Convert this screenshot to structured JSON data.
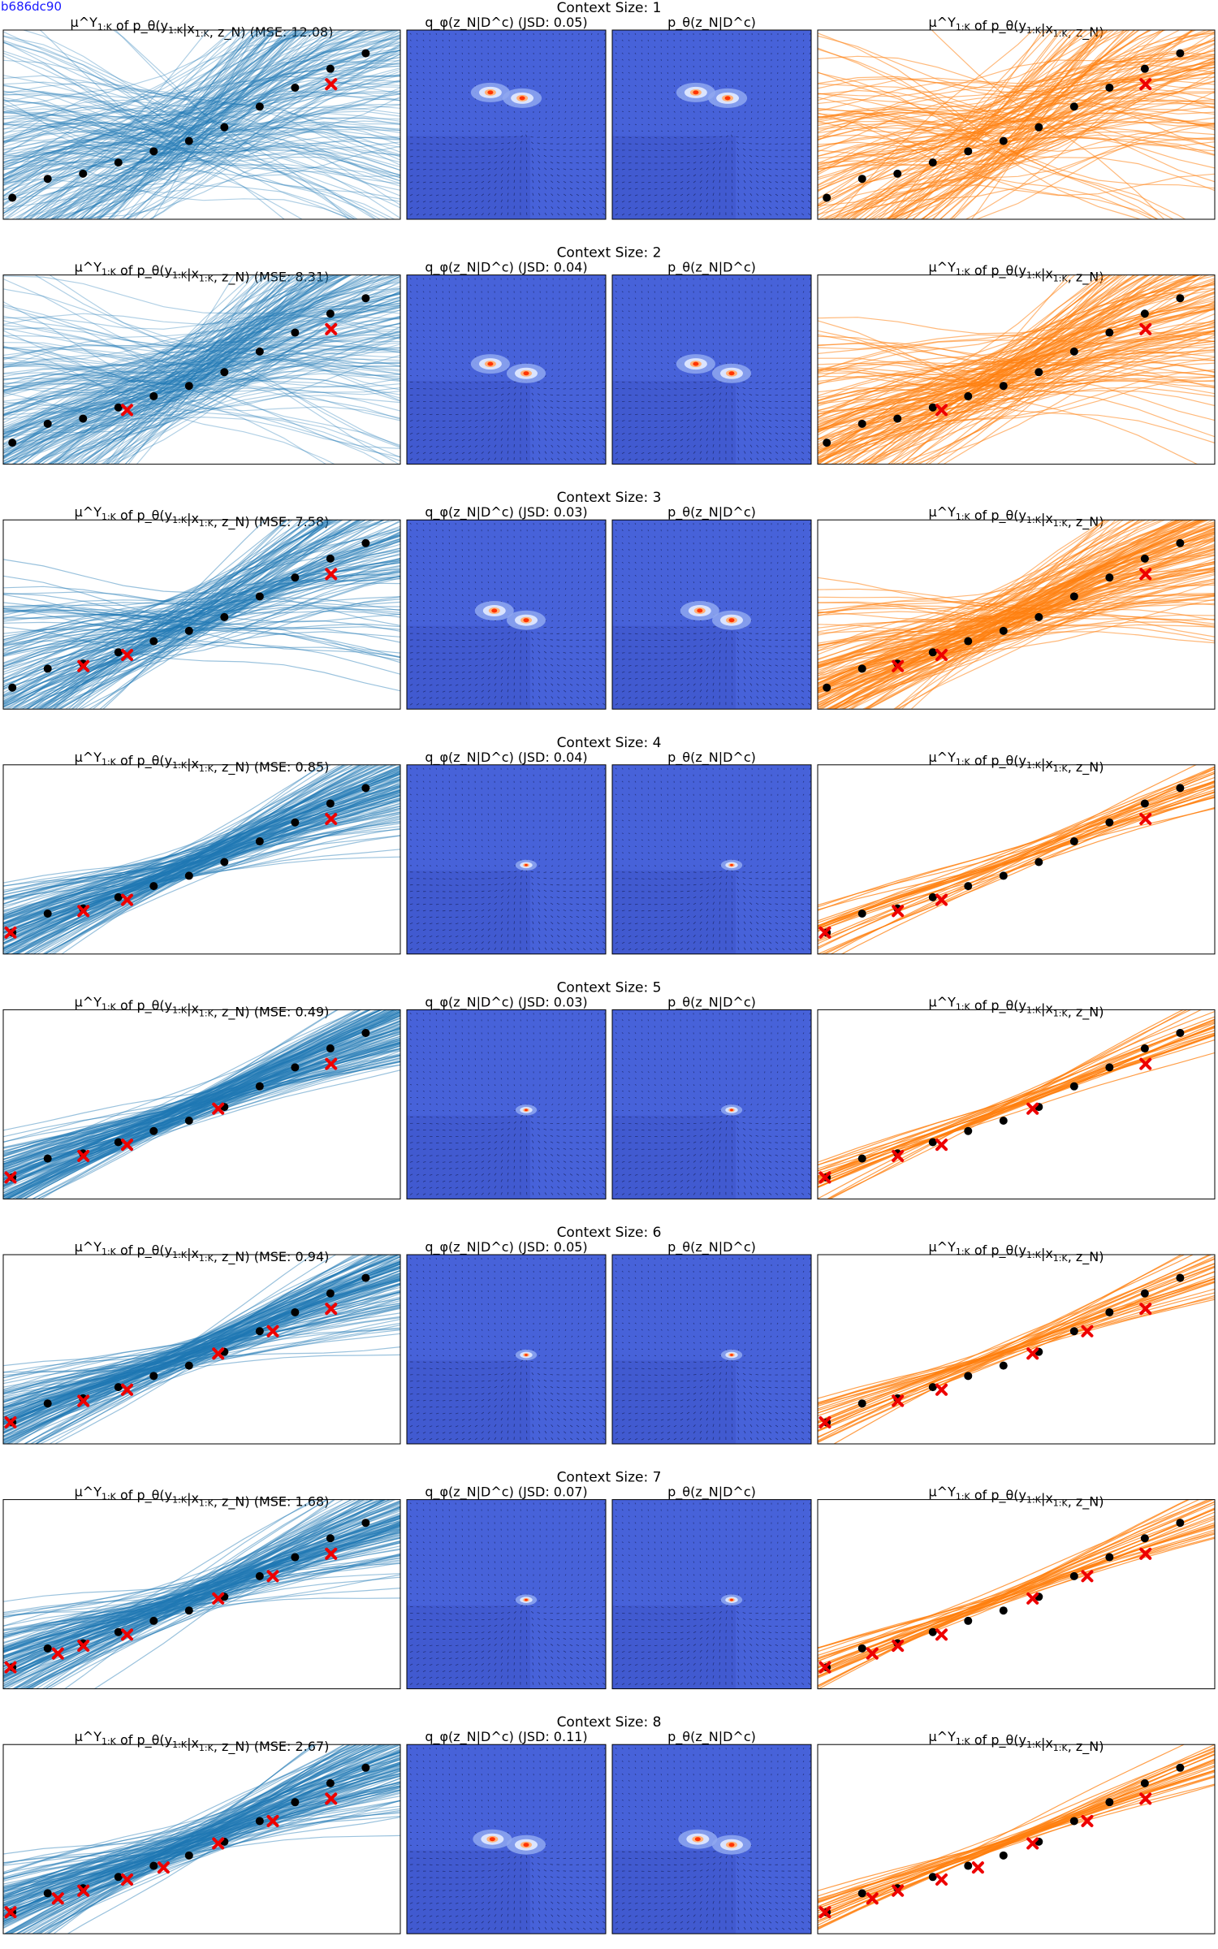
{
  "figure_id": "b686dc90",
  "colors": {
    "left_curves": "#1f77b4",
    "right_curves": "#ff7f0e",
    "target_points": "#000000",
    "context_points": "#ee0000",
    "density_background": "#4762d9",
    "density_peak": "#ff3300"
  },
  "chart_data": [
    {
      "type": "line",
      "title": "Context Size: 1",
      "context_size": 1,
      "panel_titles": {
        "left": "μ^Y_{1:K} of p_θ(y_{1:K}|x_{1:K}, z_N) (MSE: 12.08)",
        "mid_left": "q_φ(z_N|D^c) (JSD: 0.05)",
        "mid_right": "p_θ(z_N|D^c)",
        "right": "μ^Y_{1:K} of p_θ(y_{1:K}|x_{1:K}, z_N)"
      },
      "mse": 12.08,
      "jsd": 0.05,
      "x": [
        0,
        1,
        2,
        3,
        4,
        5,
        6,
        7,
        8,
        9,
        10
      ],
      "target_y": [
        3.0,
        5.2,
        5.8,
        7.1,
        8.4,
        9.6,
        11.2,
        13.6,
        15.8,
        18.0,
        19.8
      ],
      "context_points": [
        {
          "x": 8.4,
          "y": 16.2
        }
      ],
      "density_modes": [
        {
          "u": 0.42,
          "v": 0.33
        },
        {
          "u": 0.58,
          "v": 0.36
        }
      ],
      "left_spread": 10.0,
      "right_spread": 9.0
    },
    {
      "type": "line",
      "title": "Context Size: 2",
      "context_size": 2,
      "panel_titles": {
        "left": "μ^Y_{1:K} of p_θ(y_{1:K}|x_{1:K}, z_N) (MSE: 8.31)",
        "mid_left": "q_φ(z_N|D^c) (JSD: 0.04)",
        "mid_right": "p_θ(z_N|D^c)",
        "right": "μ^Y_{1:K} of p_θ(y_{1:K}|x_{1:K}, z_N)"
      },
      "mse": 8.31,
      "jsd": 0.04,
      "x": [
        0,
        1,
        2,
        3,
        4,
        5,
        6,
        7,
        8,
        9,
        10
      ],
      "target_y": [
        3.0,
        5.2,
        5.8,
        7.1,
        8.4,
        9.6,
        11.2,
        13.6,
        15.8,
        18.0,
        19.8
      ],
      "context_points": [
        {
          "x": 2.8,
          "y": 6.8
        },
        {
          "x": 8.4,
          "y": 16.2
        }
      ],
      "density_modes": [
        {
          "u": 0.42,
          "v": 0.47
        },
        {
          "u": 0.6,
          "v": 0.52
        }
      ],
      "left_spread": 7.5,
      "right_spread": 6.5
    },
    {
      "type": "line",
      "title": "Context Size: 3",
      "context_size": 3,
      "panel_titles": {
        "left": "μ^Y_{1:K} of p_θ(y_{1:K}|x_{1:K}, z_N) (MSE: 7.58)",
        "mid_left": "q_φ(z_N|D^c) (JSD: 0.03)",
        "mid_right": "p_θ(z_N|D^c)",
        "right": "μ^Y_{1:K} of p_θ(y_{1:K}|x_{1:K}, z_N)"
      },
      "mse": 7.58,
      "jsd": 0.03,
      "x": [
        0,
        1,
        2,
        3,
        4,
        5,
        6,
        7,
        8,
        9,
        10
      ],
      "target_y": [
        3.0,
        5.2,
        5.8,
        7.1,
        8.4,
        9.6,
        11.2,
        13.6,
        15.8,
        18.0,
        19.8
      ],
      "context_points": [
        {
          "x": 1.6,
          "y": 5.5
        },
        {
          "x": 2.8,
          "y": 6.8
        },
        {
          "x": 8.4,
          "y": 16.2
        }
      ],
      "density_modes": [
        {
          "u": 0.44,
          "v": 0.48
        },
        {
          "u": 0.6,
          "v": 0.53
        }
      ],
      "left_spread": 5.5,
      "right_spread": 4.5
    },
    {
      "type": "line",
      "title": "Context Size: 4",
      "context_size": 4,
      "panel_titles": {
        "left": "μ^Y_{1:K} of p_θ(y_{1:K}|x_{1:K}, z_N) (MSE: 0.85)",
        "mid_left": "q_φ(z_N|D^c) (JSD: 0.04)",
        "mid_right": "p_θ(z_N|D^c)",
        "right": "μ^Y_{1:K} of p_θ(y_{1:K}|x_{1:K}, z_N)"
      },
      "mse": 0.85,
      "jsd": 0.04,
      "x": [
        0,
        1,
        2,
        3,
        4,
        5,
        6,
        7,
        8,
        9,
        10
      ],
      "target_y": [
        3.0,
        5.2,
        5.8,
        7.1,
        8.4,
        9.6,
        11.2,
        13.6,
        15.8,
        18.0,
        19.8
      ],
      "context_points": [
        {
          "x": -0.4,
          "y": 3.0
        },
        {
          "x": 1.6,
          "y": 5.5
        },
        {
          "x": 2.8,
          "y": 6.8
        },
        {
          "x": 8.4,
          "y": 16.2
        }
      ],
      "density_modes": [
        {
          "u": 0.6,
          "v": 0.53
        }
      ],
      "left_spread": 2.5,
      "right_spread": 1.6
    },
    {
      "type": "line",
      "title": "Context Size: 5",
      "context_size": 5,
      "panel_titles": {
        "left": "μ^Y_{1:K} of p_θ(y_{1:K}|x_{1:K}, z_N) (MSE: 0.49)",
        "mid_left": "q_φ(z_N|D^c) (JSD: 0.03)",
        "mid_right": "p_θ(z_N|D^c)",
        "right": "μ^Y_{1:K} of p_θ(y_{1:K}|x_{1:K}, z_N)"
      },
      "mse": 0.49,
      "jsd": 0.03,
      "x": [
        0,
        1,
        2,
        3,
        4,
        5,
        6,
        7,
        8,
        9,
        10
      ],
      "target_y": [
        3.0,
        5.2,
        5.8,
        7.1,
        8.4,
        9.6,
        11.2,
        13.6,
        15.8,
        18.0,
        19.8
      ],
      "context_points": [
        {
          "x": -0.4,
          "y": 3.0
        },
        {
          "x": 1.6,
          "y": 5.5
        },
        {
          "x": 2.8,
          "y": 6.8
        },
        {
          "x": 5.3,
          "y": 11.0
        },
        {
          "x": 8.4,
          "y": 16.2
        }
      ],
      "density_modes": [
        {
          "u": 0.6,
          "v": 0.53
        }
      ],
      "left_spread": 2.2,
      "right_spread": 1.5
    },
    {
      "type": "line",
      "title": "Context Size: 6",
      "context_size": 6,
      "panel_titles": {
        "left": "μ^Y_{1:K} of p_θ(y_{1:K}|x_{1:K}, z_N) (MSE: 0.94)",
        "mid_left": "q_φ(z_N|D^c) (JSD: 0.05)",
        "mid_right": "p_θ(z_N|D^c)",
        "right": "μ^Y_{1:K} of p_θ(y_{1:K}|x_{1:K}, z_N)"
      },
      "mse": 0.94,
      "jsd": 0.05,
      "x": [
        0,
        1,
        2,
        3,
        4,
        5,
        6,
        7,
        8,
        9,
        10
      ],
      "target_y": [
        3.0,
        5.2,
        5.8,
        7.1,
        8.4,
        9.6,
        11.2,
        13.6,
        15.8,
        18.0,
        19.8
      ],
      "context_points": [
        {
          "x": -0.4,
          "y": 3.0
        },
        {
          "x": 1.6,
          "y": 5.5
        },
        {
          "x": 2.8,
          "y": 6.8
        },
        {
          "x": 5.3,
          "y": 11.0
        },
        {
          "x": 6.8,
          "y": 13.6
        },
        {
          "x": 8.4,
          "y": 16.2
        }
      ],
      "density_modes": [
        {
          "u": 0.6,
          "v": 0.53
        }
      ],
      "left_spread": 2.6,
      "right_spread": 1.5
    },
    {
      "type": "line",
      "title": "Context Size: 7",
      "context_size": 7,
      "panel_titles": {
        "left": "μ^Y_{1:K} of p_θ(y_{1:K}|x_{1:K}, z_N) (MSE: 1.68)",
        "mid_left": "q_φ(z_N|D^c) (JSD: 0.07)",
        "mid_right": "p_θ(z_N|D^c)",
        "right": "μ^Y_{1:K} of p_θ(y_{1:K}|x_{1:K}, z_N)"
      },
      "mse": 1.68,
      "jsd": 0.07,
      "x": [
        0,
        1,
        2,
        3,
        4,
        5,
        6,
        7,
        8,
        9,
        10
      ],
      "target_y": [
        3.0,
        5.2,
        5.8,
        7.1,
        8.4,
        9.6,
        11.2,
        13.6,
        15.8,
        18.0,
        19.8
      ],
      "context_points": [
        {
          "x": -0.4,
          "y": 3.0
        },
        {
          "x": 0.9,
          "y": 4.6
        },
        {
          "x": 1.6,
          "y": 5.5
        },
        {
          "x": 2.8,
          "y": 6.8
        },
        {
          "x": 5.3,
          "y": 11.0
        },
        {
          "x": 6.8,
          "y": 13.6
        },
        {
          "x": 8.4,
          "y": 16.2
        }
      ],
      "density_modes": [
        {
          "u": 0.6,
          "v": 0.53
        }
      ],
      "left_spread": 2.8,
      "right_spread": 1.3
    },
    {
      "type": "line",
      "title": "Context Size: 8",
      "context_size": 8,
      "panel_titles": {
        "left": "μ^Y_{1:K} of p_θ(y_{1:K}|x_{1:K}, z_N) (MSE: 2.67)",
        "mid_left": "q_φ(z_N|D^c) (JSD: 0.11)",
        "mid_right": "p_θ(z_N|D^c)",
        "right": "μ^Y_{1:K} of p_θ(y_{1:K}|x_{1:K}, z_N)"
      },
      "mse": 2.67,
      "jsd": 0.11,
      "x": [
        0,
        1,
        2,
        3,
        4,
        5,
        6,
        7,
        8,
        9,
        10
      ],
      "target_y": [
        3.0,
        5.2,
        5.8,
        7.1,
        8.4,
        9.6,
        11.2,
        13.6,
        15.8,
        18.0,
        19.8
      ],
      "context_points": [
        {
          "x": -0.4,
          "y": 3.0
        },
        {
          "x": 0.9,
          "y": 4.6
        },
        {
          "x": 1.6,
          "y": 5.5
        },
        {
          "x": 2.8,
          "y": 6.8
        },
        {
          "x": 3.8,
          "y": 8.2
        },
        {
          "x": 5.3,
          "y": 11.0
        },
        {
          "x": 6.8,
          "y": 13.6
        },
        {
          "x": 8.4,
          "y": 16.2
        }
      ],
      "density_modes": [
        {
          "u": 0.6,
          "v": 0.53
        },
        {
          "u": 0.43,
          "v": 0.5
        }
      ],
      "left_spread": 3.0,
      "right_spread": 1.2
    }
  ]
}
